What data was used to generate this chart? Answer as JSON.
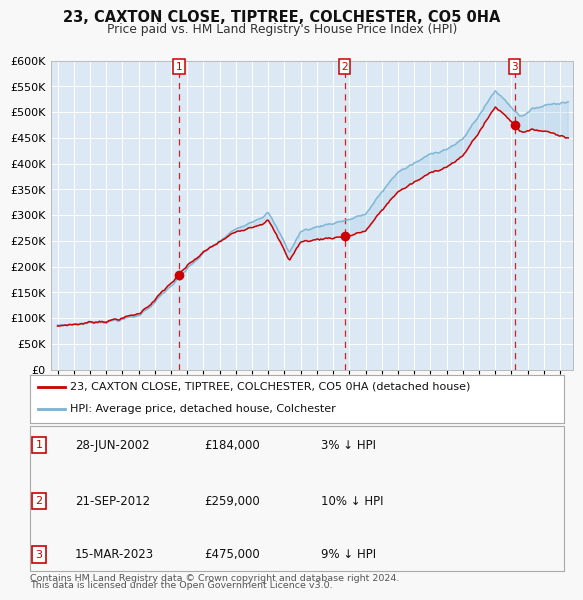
{
  "title": "23, CAXTON CLOSE, TIPTREE, COLCHESTER, CO5 0HA",
  "subtitle": "Price paid vs. HM Land Registry's House Price Index (HPI)",
  "ylim": [
    0,
    600000
  ],
  "yticks": [
    0,
    50000,
    100000,
    150000,
    200000,
    250000,
    300000,
    350000,
    400000,
    450000,
    500000,
    550000,
    600000
  ],
  "xlim_start": 1994.6,
  "xlim_end": 2026.8,
  "bg_color": "#dce9f5",
  "grid_color": "#ffffff",
  "hpi_line_color": "#7ab3d4",
  "price_line_color": "#cc0000",
  "sale_marker_color": "#cc0000",
  "dashed_line_color": "#cc0000",
  "fig_bg": "#f8f8f8",
  "sales": [
    {
      "date_num": 2002.49,
      "price": 184000,
      "label": "1"
    },
    {
      "date_num": 2012.72,
      "price": 259000,
      "label": "2"
    },
    {
      "date_num": 2023.2,
      "price": 475000,
      "label": "3"
    }
  ],
  "sale_annotations": [
    {
      "label": "1",
      "date": "28-JUN-2002",
      "price": "£184,000",
      "pct": "3%",
      "dir": "↓",
      "rel": "HPI"
    },
    {
      "label": "2",
      "date": "21-SEP-2012",
      "price": "£259,000",
      "pct": "10%",
      "dir": "↓",
      "rel": "HPI"
    },
    {
      "label": "3",
      "date": "15-MAR-2023",
      "price": "£475,000",
      "pct": "9%",
      "dir": "↓",
      "rel": "HPI"
    }
  ],
  "legend_line1": "23, CAXTON CLOSE, TIPTREE, COLCHESTER, CO5 0HA (detached house)",
  "legend_line2": "HPI: Average price, detached house, Colchester",
  "footnote1": "Contains HM Land Registry data © Crown copyright and database right 2024.",
  "footnote2": "This data is licensed under the Open Government Licence v3.0."
}
